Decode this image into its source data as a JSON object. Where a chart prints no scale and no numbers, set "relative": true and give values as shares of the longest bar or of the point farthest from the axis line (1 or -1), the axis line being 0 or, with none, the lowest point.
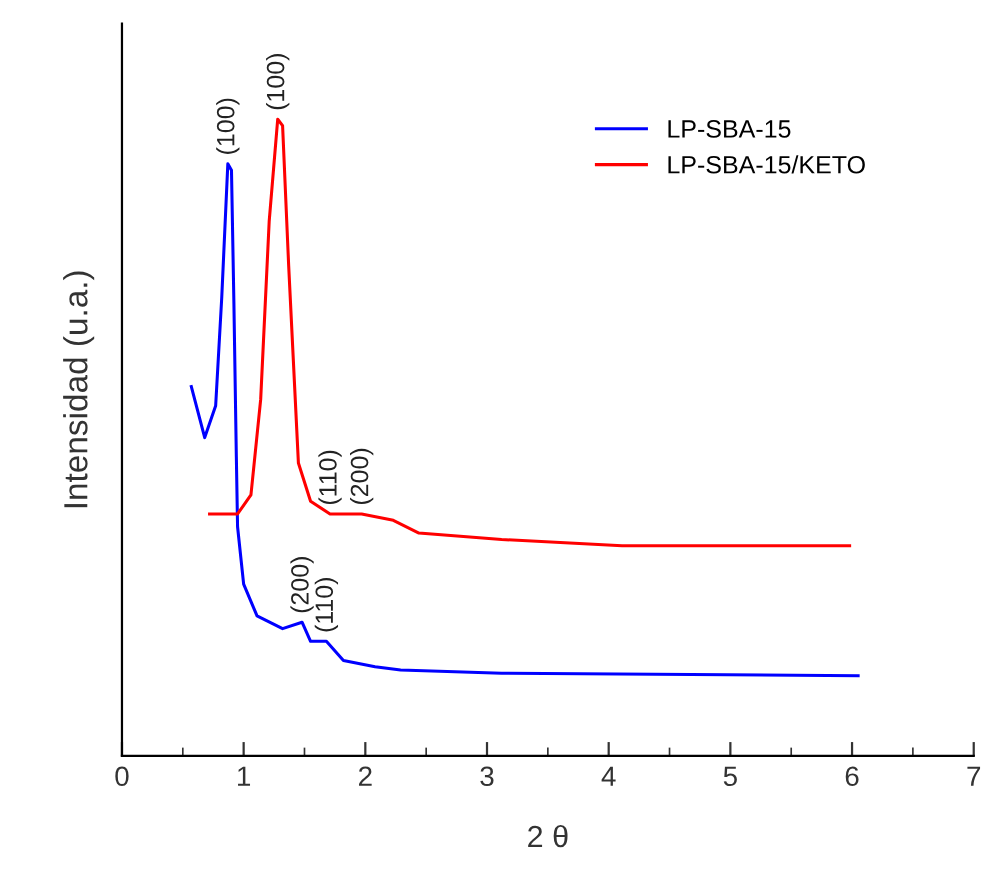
{
  "chart_data": {
    "type": "line",
    "xlabel": "2 θ",
    "ylabel": "Intensidad (u.a.)",
    "relative": true,
    "xlim": [
      0,
      7
    ],
    "xticks": [
      0,
      1,
      2,
      3,
      4,
      5,
      6,
      7
    ],
    "series": [
      {
        "name": "LP-SBA-15",
        "color": "#0000ff",
        "x": [
          0.57,
          0.68,
          0.77,
          0.82,
          0.87,
          0.9,
          0.92,
          0.94,
          0.95,
          1.0,
          1.11,
          1.32,
          1.48,
          1.55,
          1.68,
          1.82,
          2.08,
          2.29,
          3.12,
          6.05
        ],
        "values": [
          0.58,
          0.5,
          0.55,
          0.72,
          0.93,
          0.92,
          0.71,
          0.47,
          0.36,
          0.27,
          0.22,
          0.2,
          0.21,
          0.18,
          0.18,
          0.15,
          0.14,
          0.135,
          0.13,
          0.126
        ]
      },
      {
        "name": "LP-SBA-15/KETO",
        "color": "#ff0000",
        "x": [
          0.72,
          0.95,
          1.06,
          1.14,
          1.21,
          1.28,
          1.32,
          1.37,
          1.45,
          1.55,
          1.71,
          1.97,
          2.23,
          2.44,
          3.12,
          4.11,
          5.98
        ],
        "values": [
          0.38,
          0.38,
          0.41,
          0.56,
          0.84,
          1.0,
          0.99,
          0.77,
          0.46,
          0.4,
          0.38,
          0.38,
          0.37,
          0.35,
          0.34,
          0.33,
          0.33
        ]
      }
    ],
    "annotations": [
      {
        "text": "(100)",
        "x": 0.87,
        "y": 0.93
      },
      {
        "text": "(100)",
        "x": 1.28,
        "y": 1.0
      },
      {
        "text": "(110)",
        "x": 1.71,
        "y": 0.38
      },
      {
        "text": "(200)",
        "x": 1.97,
        "y": 0.38
      },
      {
        "text": "(200)",
        "x": 1.48,
        "y": 0.21
      },
      {
        "text": "(110)",
        "x": 1.68,
        "y": 0.18
      }
    ],
    "legend": "top right",
    "grid": false
  }
}
